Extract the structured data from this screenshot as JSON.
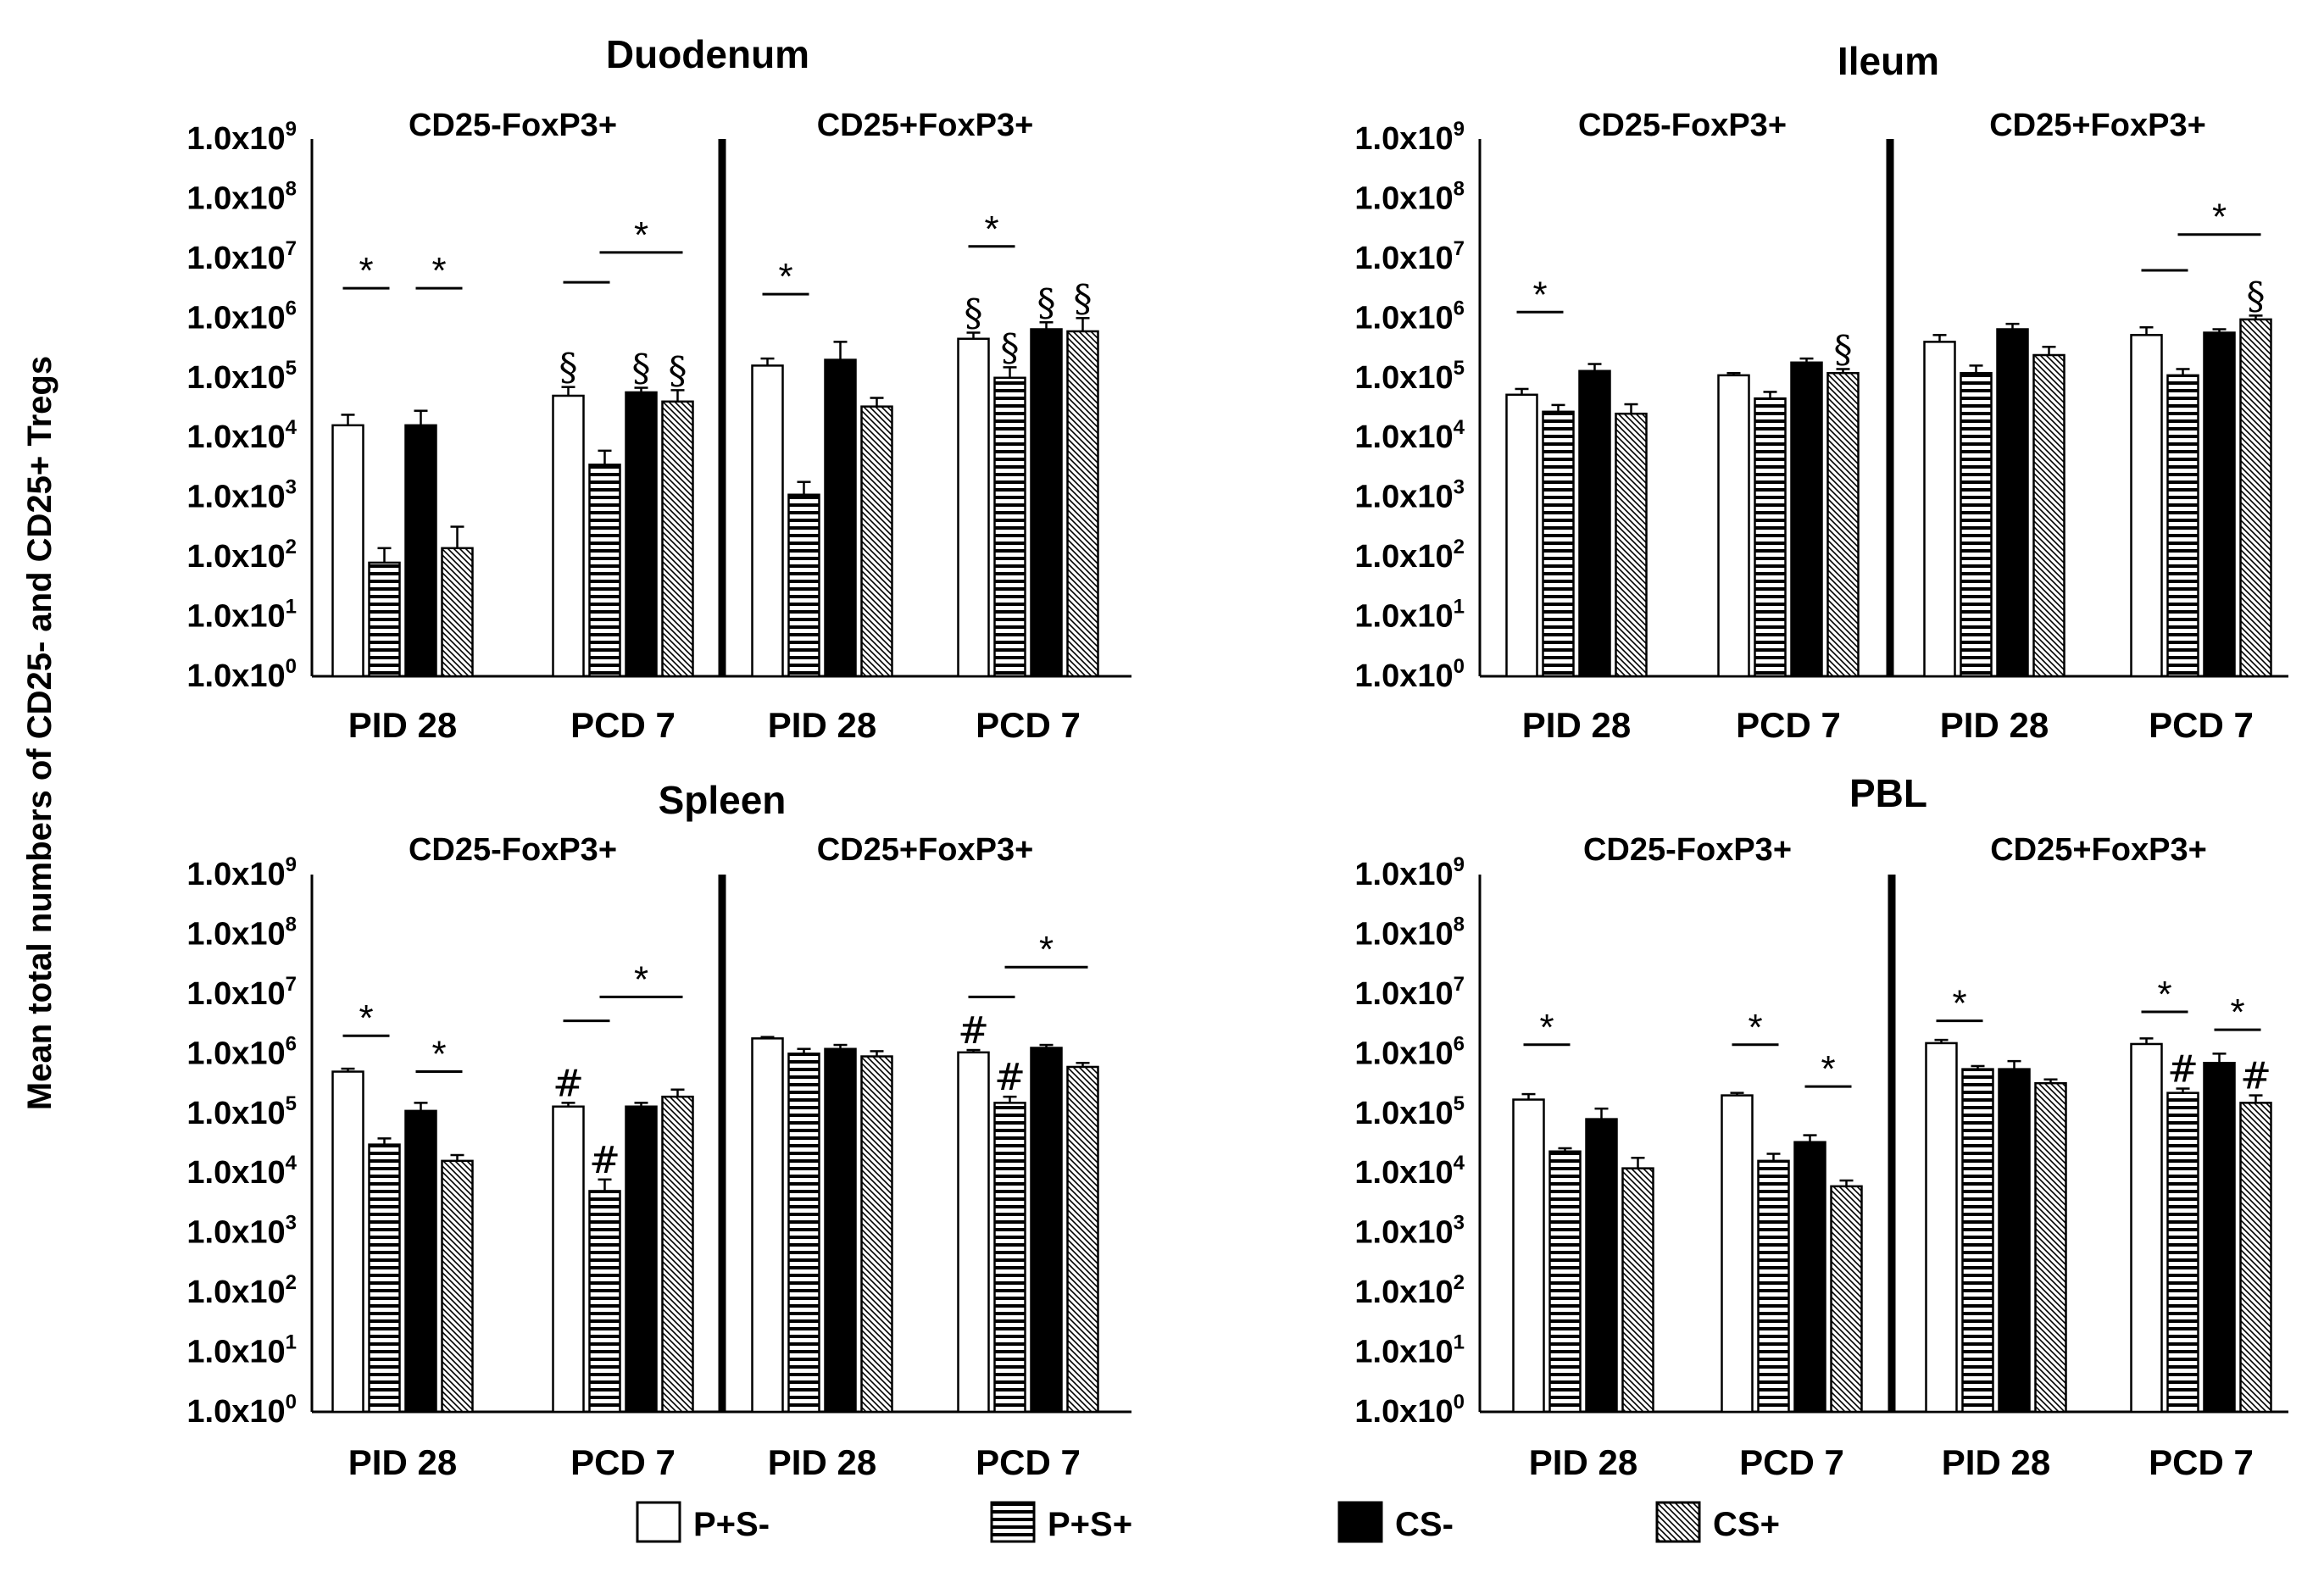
{
  "y_axis_label": "Mean total numbers of CD25- and CD25+ Tregs",
  "legend": [
    {
      "key": "ps_minus",
      "label": "P+S-",
      "pattern": "open"
    },
    {
      "key": "ps_plus",
      "label": "P+S+",
      "pattern": "horizontal-stripes"
    },
    {
      "key": "cs_minus",
      "label": "CS-",
      "pattern": "solid"
    },
    {
      "key": "cs_plus",
      "label": "CS+",
      "pattern": "diagonal-hatch"
    }
  ],
  "colors": {
    "ink": "#000000",
    "background": "#ffffff"
  },
  "chart_data": [
    {
      "type": "bar",
      "title": "Duodenum",
      "y_scale": "log",
      "ylim": [
        1,
        1000000000
      ],
      "y_ticks": [
        {
          "base": "1.0x10",
          "exp": "0"
        },
        {
          "base": "1.0x10",
          "exp": "1"
        },
        {
          "base": "1.0x10",
          "exp": "2"
        },
        {
          "base": "1.0x10",
          "exp": "3"
        },
        {
          "base": "1.0x10",
          "exp": "4"
        },
        {
          "base": "1.0x10",
          "exp": "5"
        },
        {
          "base": "1.0x10",
          "exp": "6"
        },
        {
          "base": "1.0x10",
          "exp": "7"
        },
        {
          "base": "1.0x10",
          "exp": "8"
        },
        {
          "base": "1.0x10",
          "exp": "9"
        }
      ],
      "panels": [
        "CD25-FoxP3+",
        "CD25+FoxP3+"
      ],
      "categories": [
        "PID 28",
        "PCD 7",
        "PID 28",
        "PCD 7"
      ],
      "series": [
        {
          "name": "P+S-",
          "values": [
            16000,
            50000,
            160000,
            450000
          ],
          "errors": [
            24000,
            70000,
            210000,
            570000
          ]
        },
        {
          "name": "P+S+",
          "values": [
            80,
            3500,
            1100,
            100000
          ],
          "errors": [
            140,
            6000,
            1800,
            150000
          ]
        },
        {
          "name": "CS-",
          "values": [
            16000,
            57000,
            200000,
            650000
          ],
          "errors": [
            28000,
            68000,
            400000,
            850000
          ]
        },
        {
          "name": "CS+",
          "values": [
            140,
            40000,
            33000,
            600000
          ],
          "errors": [
            320,
            62000,
            46000,
            1000000
          ]
        }
      ],
      "markers": [
        {
          "text": "§",
          "group": 1,
          "series": 0
        },
        {
          "text": "§",
          "group": 1,
          "series": 2
        },
        {
          "text": "§",
          "group": 1,
          "series": 3
        },
        {
          "text": "§",
          "group": 3,
          "series": 0
        },
        {
          "text": "§",
          "group": 3,
          "series": 1
        },
        {
          "text": "§",
          "group": 3,
          "series": 2
        },
        {
          "text": "§",
          "group": 3,
          "series": 3
        }
      ],
      "significance": [
        {
          "group": 0,
          "from": 0,
          "to": 1,
          "level": 6.5,
          "star": true
        },
        {
          "group": 0,
          "from": 2,
          "to": 3,
          "level": 6.5,
          "star": true
        },
        {
          "group": 1,
          "from": 0,
          "to": 1,
          "level": 6.6,
          "star": false
        },
        {
          "group": 1,
          "from": 1,
          "to": 3,
          "level": 7.1,
          "star": true
        },
        {
          "group": 2,
          "from": 0,
          "to": 1,
          "level": 6.4,
          "star": true
        },
        {
          "group": 3,
          "from": 0,
          "to": 1,
          "level": 7.2,
          "star": true
        }
      ]
    },
    {
      "type": "bar",
      "title": "Ileum",
      "y_scale": "log",
      "ylim": [
        1,
        1000000000
      ],
      "y_ticks": [
        {
          "base": "1.0x10",
          "exp": "0"
        },
        {
          "base": "1.0x10",
          "exp": "1"
        },
        {
          "base": "1.0x10",
          "exp": "2"
        },
        {
          "base": "1.0x10",
          "exp": "3"
        },
        {
          "base": "1.0x10",
          "exp": "4"
        },
        {
          "base": "1.0x10",
          "exp": "5"
        },
        {
          "base": "1.0x10",
          "exp": "6"
        },
        {
          "base": "1.0x10",
          "exp": "7"
        },
        {
          "base": "1.0x10",
          "exp": "8"
        },
        {
          "base": "1.0x10",
          "exp": "9"
        }
      ],
      "panels": [
        "CD25-FoxP3+",
        "CD25+FoxP3+"
      ],
      "categories": [
        "PID 28",
        "PCD 7",
        "PID 28",
        "PCD 7"
      ],
      "series": [
        {
          "name": "P+S-",
          "values": [
            52000,
            110000,
            400000,
            520000
          ],
          "errors": [
            65000,
            120000,
            520000,
            700000
          ]
        },
        {
          "name": "P+S+",
          "values": [
            27000,
            45000,
            120000,
            110000
          ],
          "errors": [
            35000,
            58000,
            160000,
            140000
          ]
        },
        {
          "name": "CS-",
          "values": [
            130000,
            180000,
            650000,
            570000
          ],
          "errors": [
            170000,
            210000,
            800000,
            650000
          ]
        },
        {
          "name": "CS+",
          "values": [
            25000,
            120000,
            240000,
            950000
          ],
          "errors": [
            36000,
            140000,
            330000,
            1100000
          ]
        }
      ],
      "markers": [
        {
          "text": "§",
          "group": 1,
          "series": 3
        },
        {
          "text": "§",
          "group": 3,
          "series": 3
        }
      ],
      "significance": [
        {
          "group": 0,
          "from": 0,
          "to": 1,
          "level": 6.1,
          "star": true
        },
        {
          "group": 3,
          "from": 0,
          "to": 1,
          "level": 6.8,
          "star": false
        },
        {
          "group": 3,
          "from": 1,
          "to": 3,
          "level": 7.4,
          "star": true
        }
      ]
    },
    {
      "type": "bar",
      "title": "Spleen",
      "y_scale": "log",
      "ylim": [
        1,
        1000000000
      ],
      "y_ticks": [
        {
          "base": "1.0x10",
          "exp": "0"
        },
        {
          "base": "1.0x10",
          "exp": "1"
        },
        {
          "base": "1.0x10",
          "exp": "2"
        },
        {
          "base": "1.0x10",
          "exp": "3"
        },
        {
          "base": "1.0x10",
          "exp": "4"
        },
        {
          "base": "1.0x10",
          "exp": "5"
        },
        {
          "base": "1.0x10",
          "exp": "6"
        },
        {
          "base": "1.0x10",
          "exp": "7"
        },
        {
          "base": "1.0x10",
          "exp": "8"
        },
        {
          "base": "1.0x10",
          "exp": "9"
        }
      ],
      "panels": [
        "CD25-FoxP3+",
        "CD25+FoxP3+"
      ],
      "categories": [
        "PID 28",
        "PCD 7",
        "PID 28",
        "PCD 7"
      ],
      "series": [
        {
          "name": "P+S-",
          "values": [
            500000,
            130000,
            1800000,
            1050000
          ],
          "errors": [
            560000,
            150000,
            1900000,
            1150000
          ]
        },
        {
          "name": "P+S+",
          "values": [
            30000,
            5000,
            1000000,
            150000
          ],
          "errors": [
            38000,
            7800,
            1200000,
            190000
          ]
        },
        {
          "name": "CS-",
          "values": [
            110000,
            130000,
            1200000,
            1250000
          ],
          "errors": [
            150000,
            150000,
            1400000,
            1400000
          ]
        },
        {
          "name": "CS+",
          "values": [
            16000,
            190000,
            900000,
            600000
          ],
          "errors": [
            20000,
            250000,
            1100000,
            700000
          ]
        }
      ],
      "markers": [
        {
          "text": "#",
          "group": 1,
          "series": 0
        },
        {
          "text": "#",
          "group": 1,
          "series": 1
        },
        {
          "text": "#",
          "group": 3,
          "series": 0
        },
        {
          "text": "#",
          "group": 3,
          "series": 1
        }
      ],
      "significance": [
        {
          "group": 0,
          "from": 0,
          "to": 1,
          "level": 6.3,
          "star": true
        },
        {
          "group": 0,
          "from": 2,
          "to": 3,
          "level": 5.7,
          "star": true
        },
        {
          "group": 1,
          "from": 0,
          "to": 1,
          "level": 6.55,
          "star": false
        },
        {
          "group": 1,
          "from": 1,
          "to": 3,
          "level": 6.95,
          "star": true
        },
        {
          "group": 3,
          "from": 0,
          "to": 1,
          "level": 6.95,
          "star": false
        },
        {
          "group": 3,
          "from": 1,
          "to": 3,
          "level": 7.45,
          "star": true
        }
      ]
    },
    {
      "type": "bar",
      "title": "PBL",
      "y_scale": "log",
      "ylim": [
        1,
        1000000000
      ],
      "y_ticks": [
        {
          "base": "1.0x10",
          "exp": "0"
        },
        {
          "base": "1.0x10",
          "exp": "1"
        },
        {
          "base": "1.0x10",
          "exp": "2"
        },
        {
          "base": "1.0x10",
          "exp": "3"
        },
        {
          "base": "1.0x10",
          "exp": "4"
        },
        {
          "base": "1.0x10",
          "exp": "5"
        },
        {
          "base": "1.0x10",
          "exp": "6"
        },
        {
          "base": "1.0x10",
          "exp": "7"
        },
        {
          "base": "1.0x10",
          "exp": "8"
        },
        {
          "base": "1.0x10",
          "exp": "9"
        }
      ],
      "panels": [
        "CD25-FoxP3+",
        "CD25+FoxP3+"
      ],
      "categories": [
        "PID 28",
        "PCD 7",
        "PID 28",
        "PCD 7"
      ],
      "series": [
        {
          "name": "P+S-",
          "values": [
            170000,
            200000,
            1500000,
            1450000
          ],
          "errors": [
            210000,
            220000,
            1700000,
            1800000
          ]
        },
        {
          "name": "P+S+",
          "values": [
            23000,
            16000,
            550000,
            220000
          ],
          "errors": [
            26000,
            21000,
            620000,
            260000
          ]
        },
        {
          "name": "CS-",
          "values": [
            80000,
            33000,
            550000,
            700000
          ],
          "errors": [
            120000,
            43000,
            750000,
            1000000
          ]
        },
        {
          "name": "CS+",
          "values": [
            12000,
            6000,
            320000,
            150000
          ],
          "errors": [
            18000,
            7500,
            370000,
            200000
          ]
        }
      ],
      "markers": [
        {
          "text": "#",
          "group": 3,
          "series": 1
        },
        {
          "text": "#",
          "group": 3,
          "series": 3
        }
      ],
      "significance": [
        {
          "group": 0,
          "from": 0,
          "to": 1,
          "level": 6.15,
          "star": true
        },
        {
          "group": 1,
          "from": 0,
          "to": 1,
          "level": 6.15,
          "star": true
        },
        {
          "group": 1,
          "from": 2,
          "to": 3,
          "level": 5.45,
          "star": true
        },
        {
          "group": 2,
          "from": 0,
          "to": 1,
          "level": 6.55,
          "star": true
        },
        {
          "group": 3,
          "from": 0,
          "to": 1,
          "level": 6.7,
          "star": true
        },
        {
          "group": 3,
          "from": 2,
          "to": 3,
          "level": 6.4,
          "star": true
        }
      ]
    }
  ]
}
